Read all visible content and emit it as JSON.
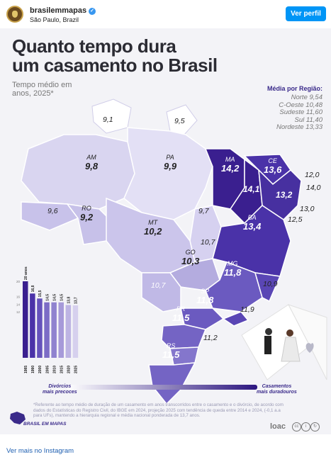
{
  "header": {
    "username": "brasilemmapas",
    "location": "São Paulo, Brazil",
    "follow_label": "Ver perfil"
  },
  "post": {
    "title_line1": "Quanto tempo dura",
    "title_line2": "um casamento no Brasil",
    "subtitle_line1": "Tempo médio em",
    "subtitle_line2": "anos, 2025*",
    "legend_title": "Média por Região:",
    "regions": [
      "Norte 9,54",
      "C-Oeste 10,48",
      "Sudeste 11,60",
      "Sul 11,40",
      "Nordeste 13,33"
    ],
    "labeled_states": [
      {
        "st": "AM",
        "val": "9,8"
      },
      {
        "st": "PA",
        "val": "9,9"
      },
      {
        "st": "MA",
        "val": "14,2"
      },
      {
        "st": "CE",
        "val": "13,6"
      },
      {
        "st": "RO",
        "val": "9,2"
      },
      {
        "st": "MT",
        "val": "10,2"
      },
      {
        "st": "BA",
        "val": "13,4"
      },
      {
        "st": "GO",
        "val": "10,3"
      },
      {
        "st": "MG",
        "val": "11,8"
      },
      {
        "st": "SP",
        "val": "11,8"
      },
      {
        "st": "PR",
        "val": "11,5"
      },
      {
        "st": "RS",
        "val": "11,5"
      }
    ],
    "numbers": [
      "9,1",
      "9,5",
      "12,0",
      "14,0",
      "14,1",
      "13,2",
      "13,0",
      "12,5",
      "9,6",
      "9,7",
      "10,7",
      "10,7",
      "10,9",
      "11,9",
      "11,2"
    ],
    "scale_left_l1": "Divórcios",
    "scale_left_l2": "mais precoces",
    "scale_right_l1": "Casamentos",
    "scale_right_l2": "mais duradouros",
    "footnote": "*Referente ao tempo médio de duração de um casamento em anos transcorridos entre o casamento e o divórcio, de acordo com dados do Estatísticas do Registro Civil, do IBGE em 2024, projeção 2025 com tendência de queda entre 2014 e 2024, (-0,1 a.a para UFs), mantendo a hierarquia regional e média nacional ponderada de 13,7 anos.",
    "logo_text": "BRASIL EM MAPAS",
    "brand": "loac",
    "colors": {
      "accent": "#3a1f8f",
      "light": "#dcd8f2"
    }
  },
  "chart_data": {
    "type": "bar",
    "categories": [
      "1985",
      "1990",
      "2000",
      "2005",
      "2010",
      "2015",
      "2020",
      "2025"
    ],
    "values": [
      20,
      16.8,
      15.5,
      14.5,
      14.5,
      14.5,
      13.8,
      13.7
    ],
    "value_labels": [
      "20 anos",
      "16,8",
      "15,5",
      "14,5",
      "14,5",
      "14,5",
      "13,8",
      "13,7"
    ],
    "y_ticks": [
      "20",
      "16",
      "14",
      "12"
    ],
    "ylim": [
      0,
      20
    ],
    "colors": [
      "#3a1f8f",
      "#4a32a8",
      "#6552bb",
      "#7c6cc6",
      "#8f82cf",
      "#a69ad9",
      "#bdb4e3",
      "#d6d0ee"
    ]
  },
  "footer": {
    "more_label": "Ver mais no Instagram"
  }
}
